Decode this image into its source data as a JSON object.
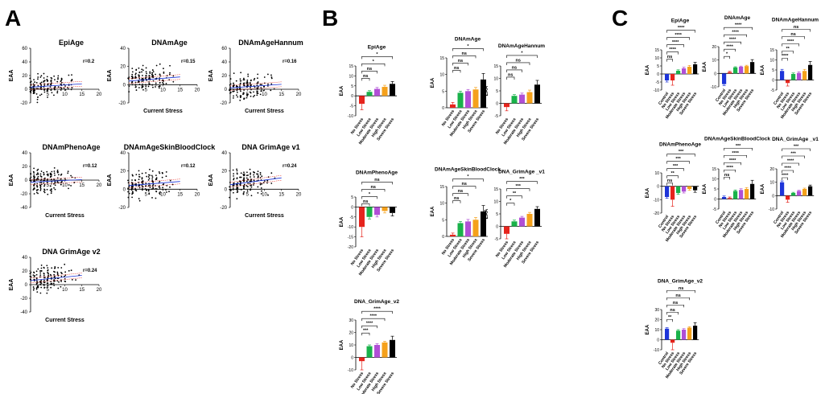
{
  "figure": {
    "panel_letters": [
      "A",
      "B",
      "C"
    ]
  },
  "chart_data": [
    {
      "panel": "A",
      "type": "scatter",
      "ylabel": "EAA",
      "xlabel": "Current Stress",
      "xticks": [
        "0",
        "5",
        "10",
        "15",
        "20"
      ],
      "charts": [
        {
          "title": "EpiAge",
          "r_label": "r=0.2",
          "ylim": [
            -20,
            60
          ],
          "yticks": [
            "-20",
            "0",
            "20",
            "40",
            "60"
          ],
          "xlim": [
            0,
            20
          ],
          "show_xlabel": false,
          "trend": {
            "slope": 0.33,
            "intercept": 3
          }
        },
        {
          "title": "DNAmAge",
          "r_label": "r=0.15",
          "ylim": [
            -20,
            40
          ],
          "yticks": [
            "-20",
            "0",
            "20",
            "40"
          ],
          "xlim": [
            0,
            20
          ],
          "show_xlabel": true,
          "trend": {
            "slope": 0.3,
            "intercept": 4
          }
        },
        {
          "title": "DNAmAgeHannum",
          "r_label": "r=0.16",
          "ylim": [
            -20,
            60
          ],
          "yticks": [
            "-20",
            "0",
            "20",
            "40",
            "60"
          ],
          "xlim": [
            0,
            20
          ],
          "show_xlabel": true,
          "trend": {
            "slope": 0.35,
            "intercept": 2
          }
        },
        {
          "title": "DNAmPhenoAge",
          "r_label": "r=0.12",
          "ylim": [
            -40,
            40
          ],
          "yticks": [
            "-40",
            "-20",
            "0",
            "20",
            "40"
          ],
          "xlim": [
            0,
            20
          ],
          "show_xlabel": true,
          "trend": {
            "slope": 0.25,
            "intercept": -3
          }
        },
        {
          "title": "DNAmAgeSkinBloodClock",
          "r_label": "r=0.12",
          "ylim": [
            -20,
            40
          ],
          "yticks": [
            "-20",
            "0",
            "20",
            "40"
          ],
          "xlim": [
            0,
            20
          ],
          "show_xlabel": false,
          "trend": {
            "slope": 0.3,
            "intercept": 4
          }
        },
        {
          "title": "DNA GrimAge v1",
          "r_label": "r=0.24",
          "ylim": [
            -20,
            40
          ],
          "yticks": [
            "-20",
            "0",
            "20",
            "40"
          ],
          "xlim": [
            0,
            20
          ],
          "show_xlabel": true,
          "trend": {
            "slope": 0.5,
            "intercept": 5
          }
        },
        {
          "title": "DNA GrimAge v2",
          "r_label": "r=0.24",
          "ylim": [
            -40,
            40
          ],
          "yticks": [
            "-40",
            "-20",
            "0",
            "20",
            "40"
          ],
          "xlim": [
            0,
            20
          ],
          "show_xlabel": true,
          "trend": {
            "slope": 0.5,
            "intercept": 6
          }
        }
      ]
    },
    {
      "panel": "B",
      "type": "bar",
      "ylabel": "EAA",
      "categories": [
        "No Stress",
        "Low Stress",
        "Moderate Stress",
        "High Stress",
        "Severe Stress"
      ],
      "colors": [
        "#e6241d",
        "#19b24a",
        "#b04fd6",
        "#f5a11b",
        "#000000"
      ],
      "charts": [
        {
          "title": "EpiAge",
          "ylim": [
            -10,
            15
          ],
          "yticks": [
            "-10",
            "-5",
            "0",
            "5",
            "10",
            "15"
          ],
          "values": [
            -4,
            2,
            3.5,
            4.5,
            6
          ],
          "errors": [
            3,
            0.6,
            0.7,
            0.8,
            1.2
          ],
          "brackets": [
            {
              "to": 1,
              "label": "ns"
            },
            {
              "to": 2,
              "label": "ns"
            },
            {
              "to": 3,
              "label": "*"
            },
            {
              "to": 4,
              "label": "*"
            }
          ]
        },
        {
          "title": "DNAmAge",
          "ylim": [
            0,
            15
          ],
          "yticks": [
            "0",
            "5",
            "10",
            "15"
          ],
          "values": [
            1,
            4.5,
            5,
            5.5,
            8.5
          ],
          "errors": [
            0.6,
            0.5,
            0.5,
            0.6,
            1.8
          ],
          "brackets": [
            {
              "to": 1,
              "label": "ns"
            },
            {
              "to": 2,
              "label": "ns"
            },
            {
              "to": 3,
              "label": "ns"
            },
            {
              "to": 4,
              "label": "*"
            }
          ]
        },
        {
          "title": "DNAmAgeHannum",
          "ylim": [
            -5,
            15
          ],
          "yticks": [
            "-5",
            "0",
            "5",
            "10",
            "15"
          ],
          "values": [
            -1.5,
            3,
            3.5,
            4.5,
            7.5
          ],
          "errors": [
            1.5,
            0.5,
            0.6,
            0.8,
            1.7
          ],
          "brackets": [
            {
              "to": 1,
              "label": "ns"
            },
            {
              "to": 2,
              "label": "ns"
            },
            {
              "to": 3,
              "label": "ns"
            },
            {
              "to": 4,
              "label": "*"
            }
          ]
        },
        {
          "title": "DNAmPhenoAge",
          "ylim": [
            -20,
            5
          ],
          "yticks": [
            "-20",
            "-15",
            "-10",
            "-5",
            "0",
            "5"
          ],
          "values": [
            -10,
            -5,
            -4,
            -2,
            -3
          ],
          "errors": [
            5,
            1,
            1,
            1,
            1.5
          ],
          "brackets": [
            {
              "to": 1,
              "label": "ns"
            },
            {
              "to": 2,
              "label": "*"
            },
            {
              "to": 3,
              "label": "ns"
            },
            {
              "to": 4,
              "label": "ns"
            }
          ]
        },
        {
          "title": "DNAmAgeSkinBloodClock",
          "ylim": [
            0,
            15
          ],
          "yticks": [
            "0",
            "5",
            "10",
            "15"
          ],
          "values": [
            0.5,
            4,
            4.5,
            5,
            7.5
          ],
          "errors": [
            0.5,
            0.5,
            0.6,
            0.7,
            1.8
          ],
          "brackets": [
            {
              "to": 1,
              "label": "ns"
            },
            {
              "to": 2,
              "label": "ns"
            },
            {
              "to": 3,
              "label": "ns"
            },
            {
              "to": 4,
              "label": "*"
            }
          ]
        },
        {
          "title": "DNA_GrimAge _v1",
          "ylim": [
            -5,
            15
          ],
          "yticks": [
            "-5",
            "0",
            "5",
            "10",
            "15"
          ],
          "values": [
            -3,
            2,
            3.5,
            5,
            7
          ],
          "errors": [
            2,
            0.5,
            0.5,
            0.6,
            0.9
          ],
          "brackets": [
            {
              "to": 1,
              "label": "*"
            },
            {
              "to": 2,
              "label": "**"
            },
            {
              "to": 3,
              "label": "***"
            },
            {
              "to": 4,
              "label": "***"
            }
          ]
        },
        {
          "title": "DNA_GrimAge_v2",
          "ylim": [
            -10,
            30
          ],
          "yticks": [
            "-10",
            "0",
            "10",
            "20",
            "30"
          ],
          "values": [
            -3,
            9,
            10,
            12,
            14
          ],
          "errors": [
            7,
            1,
            1,
            1,
            3
          ],
          "brackets": [
            {
              "to": 1,
              "label": "***"
            },
            {
              "to": 2,
              "label": "****"
            },
            {
              "to": 3,
              "label": "****"
            },
            {
              "to": 4,
              "label": "****"
            }
          ]
        }
      ]
    },
    {
      "panel": "C",
      "type": "bar",
      "ylabel": "EAA",
      "categories": [
        "Control",
        "No Stress",
        "Low Stress",
        "Moderate Stress",
        "High Stress",
        "Severe Stress"
      ],
      "colors": [
        "#1d34d9",
        "#e6241d",
        "#19b24a",
        "#b04fd6",
        "#f5a11b",
        "#000000"
      ],
      "charts": [
        {
          "title": "EpiAge",
          "ylim": [
            -10,
            15
          ],
          "yticks": [
            "-10",
            "-5",
            "0",
            "5",
            "10",
            "15"
          ],
          "values": [
            -4,
            -4,
            2,
            3.5,
            4.5,
            6
          ],
          "errors": [
            1,
            3,
            0.6,
            0.7,
            0.8,
            1.2
          ],
          "brackets": [
            {
              "to": 1,
              "label": "ns"
            },
            {
              "to": 2,
              "label": "****"
            },
            {
              "to": 3,
              "label": "****"
            },
            {
              "to": 4,
              "label": "****"
            },
            {
              "to": 5,
              "label": "****"
            }
          ]
        },
        {
          "title": "DNAmAge",
          "ylim": [
            -10,
            20
          ],
          "yticks": [
            "-10",
            "0",
            "10",
            "20"
          ],
          "values": [
            -8,
            1,
            4.5,
            5,
            5.5,
            8.5
          ],
          "errors": [
            1,
            0.6,
            0.5,
            0.5,
            0.6,
            1.8
          ],
          "brackets": [
            {
              "to": 1,
              "label": "*"
            },
            {
              "to": 2,
              "label": "****"
            },
            {
              "to": 3,
              "label": "****"
            },
            {
              "to": 4,
              "label": "****"
            },
            {
              "to": 5,
              "label": "****"
            }
          ]
        },
        {
          "title": "DNAmAgeHannum",
          "ylim": [
            -5,
            15
          ],
          "yticks": [
            "-5",
            "0",
            "5",
            "10",
            "15"
          ],
          "values": [
            4.5,
            -1.5,
            3,
            3.5,
            4.5,
            7.5
          ],
          "errors": [
            0.8,
            1.5,
            0.5,
            0.6,
            0.8,
            1.7
          ],
          "brackets": [
            {
              "to": 1,
              "label": "****"
            },
            {
              "to": 2,
              "label": "**"
            },
            {
              "to": 3,
              "label": "****"
            },
            {
              "to": 4,
              "label": "ns"
            },
            {
              "to": 5,
              "label": "ns"
            }
          ]
        },
        {
          "title": "DNAmPhenoAge",
          "ylim": [
            -20,
            10
          ],
          "yticks": [
            "-20",
            "-10",
            "0",
            "10"
          ],
          "values": [
            -8,
            -10,
            -5,
            -4,
            -2,
            -3
          ],
          "errors": [
            1,
            5,
            1,
            1,
            1,
            1.5
          ],
          "brackets": [
            {
              "to": 1,
              "label": "ns"
            },
            {
              "to": 2,
              "label": "**"
            },
            {
              "to": 3,
              "label": "***"
            },
            {
              "to": 4,
              "label": "***"
            },
            {
              "to": 5,
              "label": "***"
            }
          ]
        },
        {
          "title": "DNAmAgeSkinBloodClock",
          "ylim": [
            -5,
            15
          ],
          "yticks": [
            "-5",
            "0",
            "5",
            "10",
            "15"
          ],
          "values": [
            1,
            0.5,
            4,
            4.5,
            5,
            7.5
          ],
          "errors": [
            0.5,
            0.5,
            0.5,
            0.6,
            0.7,
            1.8
          ],
          "brackets": [
            {
              "to": 1,
              "label": "ns"
            },
            {
              "to": 2,
              "label": "****"
            },
            {
              "to": 3,
              "label": "****"
            },
            {
              "to": 4,
              "label": "****"
            },
            {
              "to": 5,
              "label": "***"
            }
          ]
        },
        {
          "title": "DNA_GrimAge _v1",
          "ylim": [
            -10,
            20
          ],
          "yticks": [
            "-10",
            "0",
            "10",
            "20"
          ],
          "values": [
            10,
            -3,
            2,
            3.5,
            5,
            7
          ],
          "errors": [
            1,
            2,
            0.5,
            0.5,
            0.6,
            0.9
          ],
          "brackets": [
            {
              "to": 1,
              "label": "****"
            },
            {
              "to": 2,
              "label": "****"
            },
            {
              "to": 3,
              "label": "****"
            },
            {
              "to": 4,
              "label": "***"
            },
            {
              "to": 5,
              "label": "***"
            }
          ]
        },
        {
          "title": "DNA_GrimAge_v2",
          "ylim": [
            -10,
            30
          ],
          "yticks": [
            "-10",
            "0",
            "10",
            "20",
            "30"
          ],
          "values": [
            11,
            -3,
            9,
            10,
            12,
            14
          ],
          "errors": [
            1,
            7,
            1,
            1,
            1,
            3
          ],
          "brackets": [
            {
              "to": 1,
              "label": "**"
            },
            {
              "to": 2,
              "label": "ns"
            },
            {
              "to": 3,
              "label": "ns"
            },
            {
              "to": 4,
              "label": "ns"
            },
            {
              "to": 5,
              "label": "ns"
            }
          ]
        }
      ]
    }
  ]
}
